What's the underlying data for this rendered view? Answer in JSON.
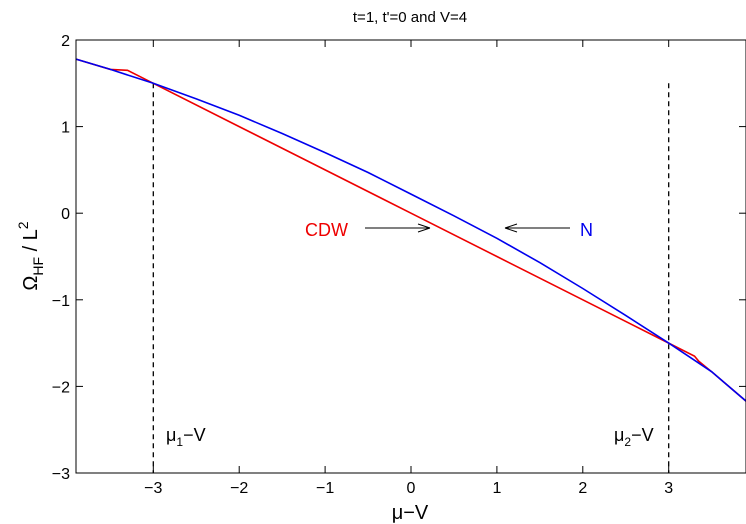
{
  "chart_data": {
    "type": "line",
    "title": "t=1, t'=0 and V=4",
    "xlabel": {
      "base": "μ",
      "rest": "−V"
    },
    "ylabel": {
      "base": "Ω",
      "sub": "HF",
      "mid": " / L",
      "sup": "2"
    },
    "xlim": [
      -3.9,
      3.9
    ],
    "ylim": [
      -3,
      2
    ],
    "xticks": [
      -3,
      -2,
      -1,
      0,
      1,
      2,
      3
    ],
    "xtick_labels": [
      "−3",
      "−2",
      "−1",
      "0",
      "1",
      "2",
      "3"
    ],
    "yticks": [
      -3,
      -2,
      -1,
      0,
      1,
      2
    ],
    "ytick_labels": [
      "−3",
      "−2",
      "−1",
      "0",
      "1",
      "2"
    ],
    "grid": false,
    "series": [
      {
        "name": "N",
        "color": "#0000ee",
        "x": [
          -3.9,
          -3.5,
          -3.0,
          -2.5,
          -2.0,
          -1.5,
          -1.0,
          -0.5,
          0.0,
          0.5,
          1.0,
          1.5,
          2.0,
          2.5,
          3.0,
          3.5,
          3.9
        ],
        "y": [
          1.78,
          1.66,
          1.5,
          1.32,
          1.13,
          0.92,
          0.7,
          0.47,
          0.22,
          -0.03,
          -0.29,
          -0.57,
          -0.87,
          -1.18,
          -1.5,
          -1.83,
          -2.17
        ]
      },
      {
        "name": "CDW",
        "color": "#ee0000",
        "x": [
          -3.9,
          -3.5,
          -3.3,
          -3.0,
          -2.0,
          -1.0,
          0.0,
          1.0,
          2.0,
          3.0,
          3.3,
          3.35,
          3.5,
          3.9
        ],
        "y": [
          1.78,
          1.66,
          1.65,
          1.5,
          1.0,
          0.5,
          0.0,
          -0.5,
          -1.0,
          -1.5,
          -1.65,
          -1.71,
          -1.83,
          -2.17
        ]
      }
    ],
    "annotations": {
      "cdw_label": "CDW",
      "n_label": "N",
      "mu1": {
        "base": "μ",
        "sub": "1",
        "rest": "−V"
      },
      "mu2": {
        "base": "μ",
        "sub": "2",
        "rest": "−V"
      }
    }
  }
}
